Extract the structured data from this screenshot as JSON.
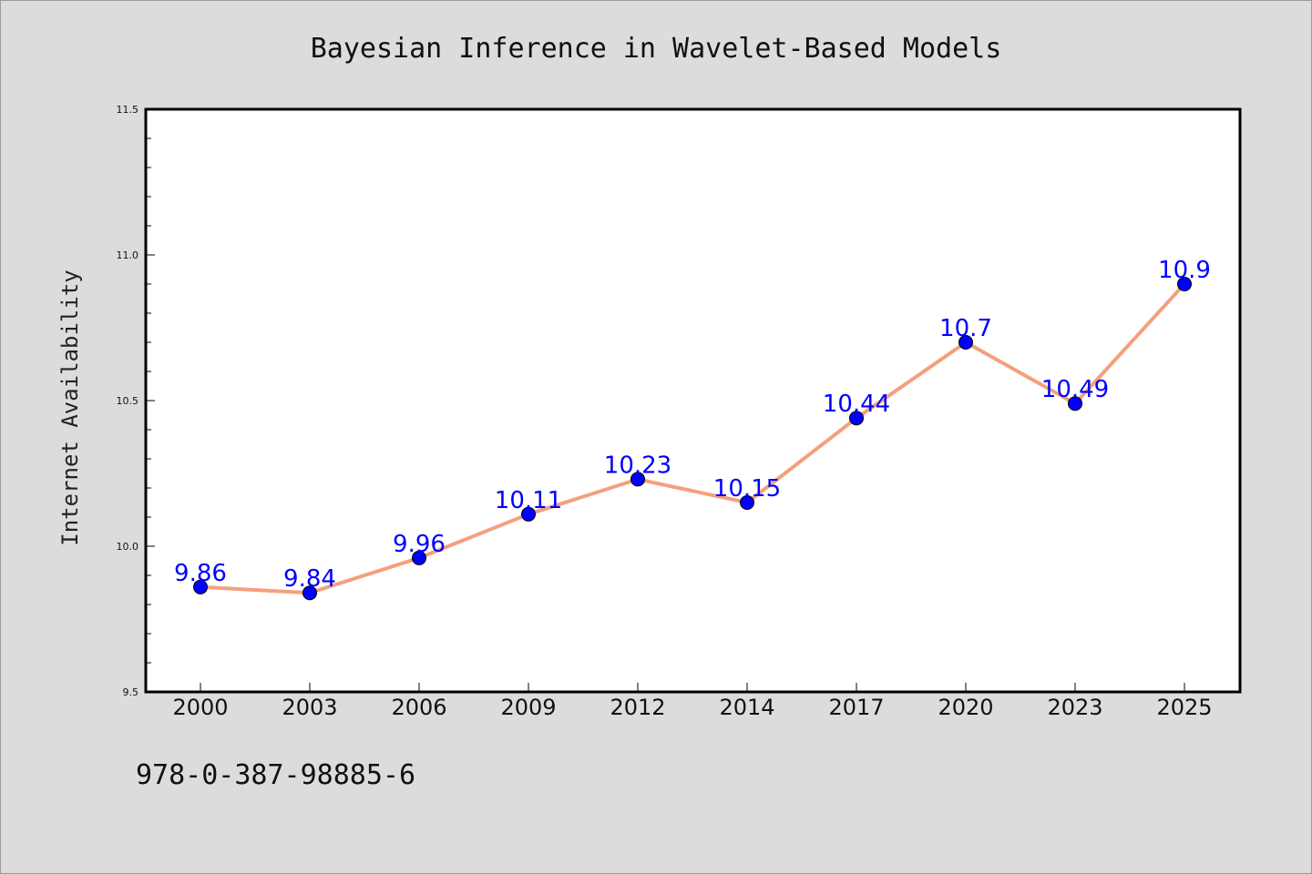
{
  "chart_data": {
    "type": "line",
    "title": "Bayesian Inference in Wavelet-Based Models",
    "xlabel": "",
    "ylabel": "Internet Availability",
    "categories": [
      "2000",
      "2003",
      "2006",
      "2009",
      "2012",
      "2014",
      "2017",
      "2020",
      "2023",
      "2025"
    ],
    "values": [
      9.86,
      9.84,
      9.96,
      10.11,
      10.23,
      10.15,
      10.44,
      10.7,
      10.49,
      10.9
    ],
    "data_labels": [
      "9.86",
      "9.84",
      "9.96",
      "10.11",
      "10.23",
      "10.15",
      "10.44",
      "10.7",
      "10.49",
      "10.9"
    ],
    "ylim": [
      9.5,
      11.5
    ],
    "yticks": [
      "9.5",
      "10.0",
      "10.5",
      "11.0",
      "11.5"
    ],
    "grid": false,
    "line_color": "#f4a07c",
    "marker_color": "#0000ff",
    "label_color": "#0000ff",
    "background_color": "#ffffff"
  },
  "footer": {
    "isbn": "978-0-387-98885-6"
  }
}
